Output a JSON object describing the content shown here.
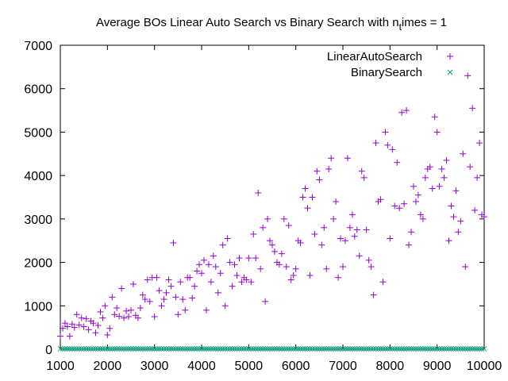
{
  "chart_data": {
    "type": "scatter",
    "title_main": "Average BOs Linear Auto Search vs Binary Search with n",
    "title_sub": "t",
    "title_tail": "imes = 1",
    "xlim": [
      1000,
      10000
    ],
    "ylim": [
      0,
      7000
    ],
    "x_ticks": [
      "1000",
      "2000",
      "3000",
      "4000",
      "5000",
      "6000",
      "7000",
      "8000",
      "9000",
      "10000"
    ],
    "y_ticks": [
      "0",
      "1000",
      "2000",
      "3000",
      "4000",
      "5000",
      "6000",
      "7000"
    ],
    "grid": false,
    "legend_position": "top-right",
    "series": [
      {
        "name": "LinearAutoSearch",
        "color": "#9400d3",
        "marker": "plus",
        "points": [
          [
            1000,
            300
          ],
          [
            1050,
            480
          ],
          [
            1100,
            600
          ],
          [
            1150,
            520
          ],
          [
            1200,
            300
          ],
          [
            1250,
            580
          ],
          [
            1300,
            500
          ],
          [
            1350,
            800
          ],
          [
            1400,
            560
          ],
          [
            1450,
            720
          ],
          [
            1500,
            520
          ],
          [
            1550,
            700
          ],
          [
            1600,
            450
          ],
          [
            1650,
            650
          ],
          [
            1700,
            600
          ],
          [
            1750,
            380
          ],
          [
            1800,
            550
          ],
          [
            1850,
            860
          ],
          [
            1900,
            720
          ],
          [
            1950,
            1000
          ],
          [
            2000,
            330
          ],
          [
            2050,
            480
          ],
          [
            2100,
            1200
          ],
          [
            2150,
            800
          ],
          [
            2200,
            950
          ],
          [
            2250,
            760
          ],
          [
            2300,
            1400
          ],
          [
            2350,
            720
          ],
          [
            2400,
            880
          ],
          [
            2450,
            750
          ],
          [
            2500,
            900
          ],
          [
            2550,
            1500
          ],
          [
            2600,
            780
          ],
          [
            2650,
            720
          ],
          [
            2700,
            950
          ],
          [
            2750,
            1250
          ],
          [
            2800,
            1150
          ],
          [
            2850,
            1600
          ],
          [
            2900,
            1100
          ],
          [
            2950,
            1650
          ],
          [
            3000,
            750
          ],
          [
            3050,
            1650
          ],
          [
            3100,
            1350
          ],
          [
            3150,
            1000
          ],
          [
            3200,
            1150
          ],
          [
            3250,
            1300
          ],
          [
            3300,
            1600
          ],
          [
            3350,
            1450
          ],
          [
            3400,
            2450
          ],
          [
            3450,
            1200
          ],
          [
            3500,
            800
          ],
          [
            3550,
            1550
          ],
          [
            3600,
            1150
          ],
          [
            3650,
            900
          ],
          [
            3700,
            1650
          ],
          [
            3750,
            1650
          ],
          [
            3800,
            1180
          ],
          [
            3850,
            1450
          ],
          [
            3900,
            1800
          ],
          [
            3950,
            1950
          ],
          [
            4000,
            1750
          ],
          [
            4050,
            2050
          ],
          [
            4100,
            900
          ],
          [
            4150,
            1950
          ],
          [
            4200,
            1550
          ],
          [
            4250,
            2150
          ],
          [
            4300,
            1900
          ],
          [
            4350,
            1300
          ],
          [
            4400,
            1750
          ],
          [
            4450,
            2400
          ],
          [
            4500,
            1000
          ],
          [
            4550,
            2550
          ],
          [
            4600,
            2000
          ],
          [
            4650,
            1450
          ],
          [
            4700,
            1950
          ],
          [
            4750,
            1700
          ],
          [
            4800,
            2100
          ],
          [
            4850,
            1550
          ],
          [
            4900,
            1650
          ],
          [
            4950,
            1600
          ],
          [
            5000,
            2100
          ],
          [
            5050,
            1550
          ],
          [
            5100,
            2650
          ],
          [
            5150,
            2100
          ],
          [
            5200,
            3600
          ],
          [
            5250,
            1850
          ],
          [
            5300,
            2800
          ],
          [
            5350,
            1100
          ],
          [
            5400,
            3000
          ],
          [
            5450,
            2500
          ],
          [
            5500,
            2400
          ],
          [
            5550,
            2250
          ],
          [
            5600,
            2000
          ],
          [
            5650,
            1950
          ],
          [
            5700,
            2200
          ],
          [
            5750,
            3000
          ],
          [
            5800,
            1900
          ],
          [
            5850,
            2850
          ],
          [
            5900,
            1600
          ],
          [
            5950,
            1700
          ],
          [
            6000,
            1850
          ],
          [
            6050,
            2500
          ],
          [
            6100,
            2450
          ],
          [
            6150,
            3500
          ],
          [
            6200,
            3700
          ],
          [
            6250,
            3250
          ],
          [
            6300,
            1700
          ],
          [
            6350,
            3500
          ],
          [
            6400,
            2650
          ],
          [
            6450,
            4100
          ],
          [
            6500,
            3900
          ],
          [
            6550,
            2400
          ],
          [
            6600,
            2800
          ],
          [
            6650,
            1850
          ],
          [
            6700,
            4150
          ],
          [
            6750,
            4400
          ],
          [
            6800,
            3000
          ],
          [
            6850,
            3400
          ],
          [
            6900,
            1650
          ],
          [
            6950,
            2550
          ],
          [
            7000,
            1900
          ],
          [
            7050,
            2500
          ],
          [
            7100,
            4400
          ],
          [
            7150,
            2800
          ],
          [
            7200,
            3100
          ],
          [
            7250,
            2600
          ],
          [
            7300,
            2750
          ],
          [
            7350,
            2150
          ],
          [
            7400,
            4100
          ],
          [
            7450,
            3950
          ],
          [
            7500,
            2750
          ],
          [
            7550,
            2050
          ],
          [
            7600,
            1900
          ],
          [
            7650,
            1250
          ],
          [
            7700,
            4750
          ],
          [
            7750,
            3400
          ],
          [
            7800,
            3450
          ],
          [
            7850,
            1550
          ],
          [
            7900,
            5000
          ],
          [
            7950,
            4700
          ],
          [
            8000,
            2550
          ],
          [
            8050,
            4600
          ],
          [
            8100,
            3300
          ],
          [
            8150,
            4300
          ],
          [
            8200,
            3250
          ],
          [
            8250,
            5450
          ],
          [
            8300,
            3350
          ],
          [
            8350,
            5500
          ],
          [
            8400,
            2400
          ],
          [
            8450,
            2700
          ],
          [
            8500,
            3750
          ],
          [
            8550,
            3400
          ],
          [
            8600,
            3550
          ],
          [
            8650,
            3100
          ],
          [
            8700,
            3000
          ],
          [
            8750,
            3950
          ],
          [
            8800,
            4150
          ],
          [
            8850,
            4200
          ],
          [
            8900,
            3700
          ],
          [
            8950,
            5350
          ],
          [
            9000,
            5000
          ],
          [
            9050,
            3750
          ],
          [
            9100,
            4150
          ],
          [
            9150,
            3950
          ],
          [
            9200,
            4350
          ],
          [
            9250,
            2500
          ],
          [
            9300,
            3300
          ],
          [
            9350,
            3050
          ],
          [
            9400,
            3650
          ],
          [
            9450,
            2700
          ],
          [
            9500,
            2950
          ],
          [
            9550,
            4500
          ],
          [
            9600,
            1900
          ],
          [
            9650,
            6300
          ],
          [
            9700,
            4200
          ],
          [
            9750,
            5550
          ],
          [
            9800,
            3200
          ],
          [
            9850,
            3950
          ],
          [
            9900,
            4750
          ],
          [
            9950,
            3100
          ],
          [
            10000,
            3050
          ]
        ]
      },
      {
        "name": "BinarySearch",
        "color": "#009e73",
        "marker": "cross",
        "x_start": 1000,
        "x_end": 10000,
        "x_step": 50,
        "y_value": 10
      }
    ]
  }
}
